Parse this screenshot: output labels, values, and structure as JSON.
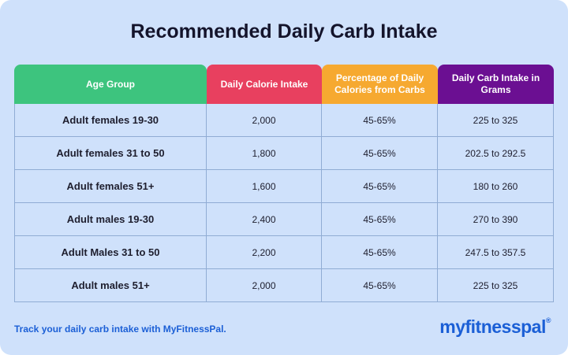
{
  "title": "Recommended Daily Carb Intake",
  "table": {
    "headers": [
      "Age Group",
      "Daily Calorie Intake",
      "Percentage of Daily Calories from Carbs",
      "Daily Carb Intake in Grams"
    ],
    "rows": [
      [
        "Adult females 19-30",
        "2,000",
        "45-65%",
        "225 to 325"
      ],
      [
        "Adult females 31 to 50",
        "1,800",
        "45-65%",
        "202.5 to 292.5"
      ],
      [
        "Adult females 51+",
        "1,600",
        "45-65%",
        "180 to 260"
      ],
      [
        "Adult males 19-30",
        "2,400",
        "45-65%",
        "270 to 390"
      ],
      [
        "Adult Males 31 to 50",
        "2,200",
        "45-65%",
        "247.5 to 357.5"
      ],
      [
        "Adult males 51+",
        "2,000",
        "45-65%",
        "225 to 325"
      ]
    ]
  },
  "footer": {
    "note": "Track your daily carb intake with MyFitnessPal.",
    "logo": "myfitnesspal",
    "logo_mark": "®"
  }
}
